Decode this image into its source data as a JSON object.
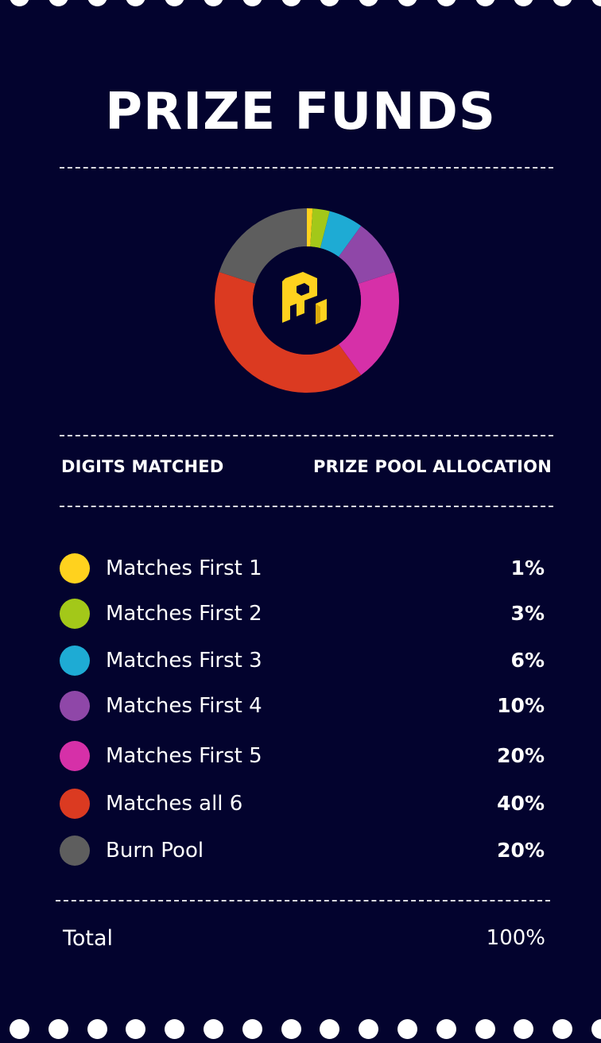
{
  "title": "PRIZE FUNDS",
  "headers": {
    "left": "DIGITS MATCHED",
    "right": "PRIZE POOL ALLOCATION"
  },
  "colors": {
    "background": "#03032e",
    "logo": "#ffd21e"
  },
  "chart_data": {
    "type": "pie",
    "donut": true,
    "categories": [
      "Matches First 1",
      "Matches First 2",
      "Matches First 3",
      "Matches First 4",
      "Matches First 5",
      "Matches all 6",
      "Burn Pool"
    ],
    "values": [
      1,
      3,
      6,
      10,
      20,
      40,
      20
    ],
    "labels": [
      "1%",
      "3%",
      "6%",
      "10%",
      "20%",
      "40%",
      "20%"
    ],
    "colors": [
      "#ffd21e",
      "#a3c819",
      "#1eabd4",
      "#8f47a8",
      "#d630a8",
      "#db3a21",
      "#5e5e5e"
    ],
    "center_icon": "logo-icon"
  },
  "rows": [
    {
      "label": "Matches First 1",
      "value": "1%"
    },
    {
      "label": "Matches First 2",
      "value": "3%"
    },
    {
      "label": "Matches First 3",
      "value": "6%"
    },
    {
      "label": "Matches First 4",
      "value": "10%"
    },
    {
      "label": "Matches First 5",
      "value": "20%"
    },
    {
      "label": "Matches all 6",
      "value": "40%"
    },
    {
      "label": "Burn Pool",
      "value": "20%"
    }
  ],
  "total": {
    "label": "Total",
    "value": "100%"
  }
}
